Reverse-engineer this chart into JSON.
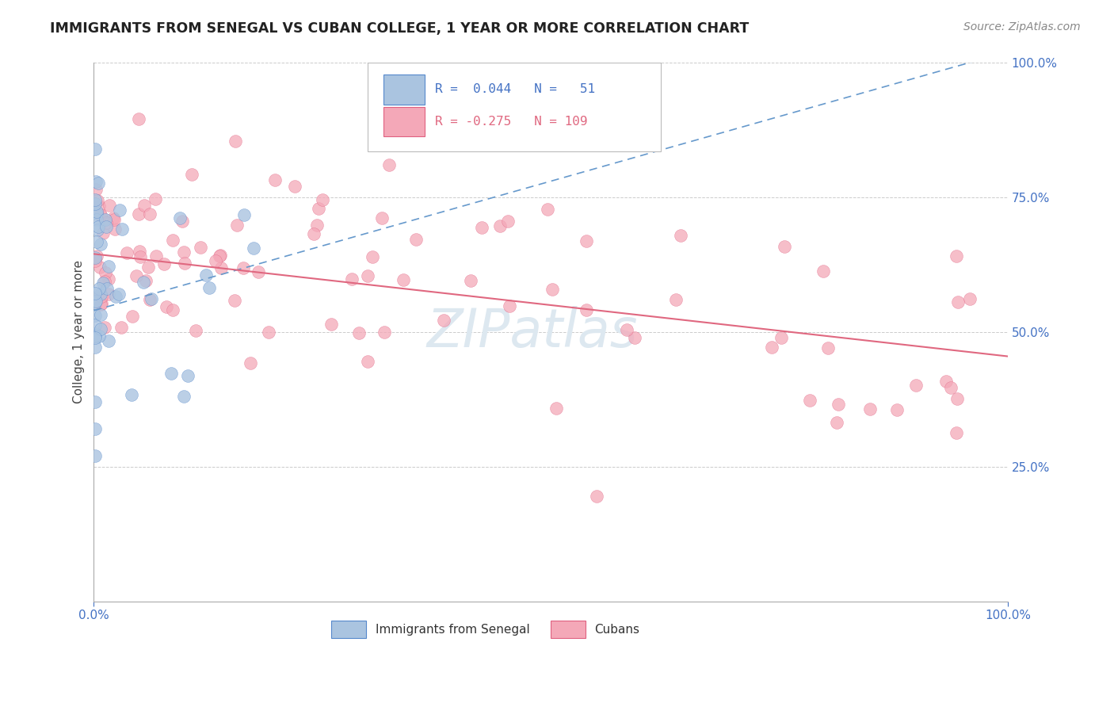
{
  "title": "IMMIGRANTS FROM SENEGAL VS CUBAN COLLEGE, 1 YEAR OR MORE CORRELATION CHART",
  "source": "Source: ZipAtlas.com",
  "ylabel": "College, 1 year or more",
  "legend_blue_label": "Immigrants from Senegal",
  "legend_pink_label": "Cubans",
  "legend_blue_text": "R =  0.044   N =   51",
  "legend_pink_text": "R = -0.275   N = 109",
  "xmin": 0.0,
  "xmax": 1.0,
  "ymin": 0.0,
  "ymax": 1.0,
  "blue_scatter_color": "#aac4e0",
  "blue_edge_color": "#5588cc",
  "pink_scatter_color": "#f4a8b8",
  "pink_edge_color": "#e06080",
  "blue_line_color": "#6699cc",
  "pink_line_color": "#e06880",
  "grid_color": "#cccccc",
  "tick_color": "#4472c4",
  "title_color": "#222222",
  "source_color": "#888888",
  "watermark_color": "#dde8f0",
  "background_color": "#ffffff",
  "blue_trendline_x0": 0.0,
  "blue_trendline_y0": 0.54,
  "blue_trendline_x1": 1.0,
  "blue_trendline_y1": 1.02,
  "pink_trendline_x0": 0.0,
  "pink_trendline_y0": 0.645,
  "pink_trendline_x1": 1.0,
  "pink_trendline_y1": 0.455
}
